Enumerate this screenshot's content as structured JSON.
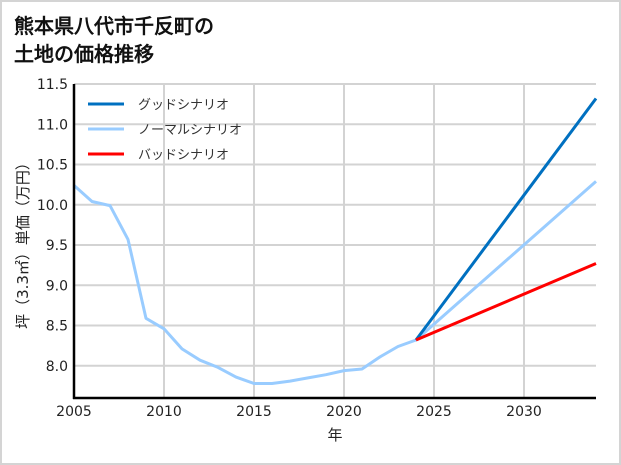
{
  "title_lines": [
    "熊本県八代市千反町の",
    "土地の価格推移"
  ],
  "chart_data": {
    "type": "line",
    "title": "熊本県八代市千反町の土地の価格推移",
    "xlabel": "年",
    "ylabel": "坪（3.3㎡）単価（万円）",
    "xlim": [
      2005,
      2034
    ],
    "ylim": [
      7.6,
      11.5
    ],
    "xticks": [
      2005,
      2010,
      2015,
      2020,
      2025,
      2030
    ],
    "yticks": [
      8.0,
      8.5,
      9.0,
      9.5,
      10.0,
      10.5,
      11.0,
      11.5
    ],
    "ytick_labels": [
      "8.0",
      "8.5",
      "9.0",
      "9.5",
      "10.0",
      "10.5",
      "11.0",
      "11.5"
    ],
    "grid": true,
    "legend_position": "upper left",
    "series": [
      {
        "name": "グッドシナリオ",
        "color": "#0070C0",
        "x": [
          2024,
          2034
        ],
        "values": [
          8.32,
          11.32
        ]
      },
      {
        "name": "ノーマルシナリオ",
        "color": "#99CCFF",
        "x": [
          2005,
          2006,
          2007,
          2008,
          2009,
          2010,
          2011,
          2012,
          2013,
          2014,
          2015,
          2016,
          2017,
          2018,
          2019,
          2020,
          2021,
          2022,
          2023,
          2024,
          2034
        ],
        "values": [
          10.24,
          10.04,
          9.99,
          9.57,
          8.59,
          8.46,
          8.21,
          8.07,
          7.98,
          7.86,
          7.78,
          7.78,
          7.81,
          7.85,
          7.89,
          7.94,
          7.96,
          8.11,
          8.24,
          8.32,
          10.29
        ]
      },
      {
        "name": "バッドシナリオ",
        "color": "#FF0000",
        "x": [
          2024,
          2034
        ],
        "values": [
          8.32,
          9.27
        ]
      }
    ]
  }
}
